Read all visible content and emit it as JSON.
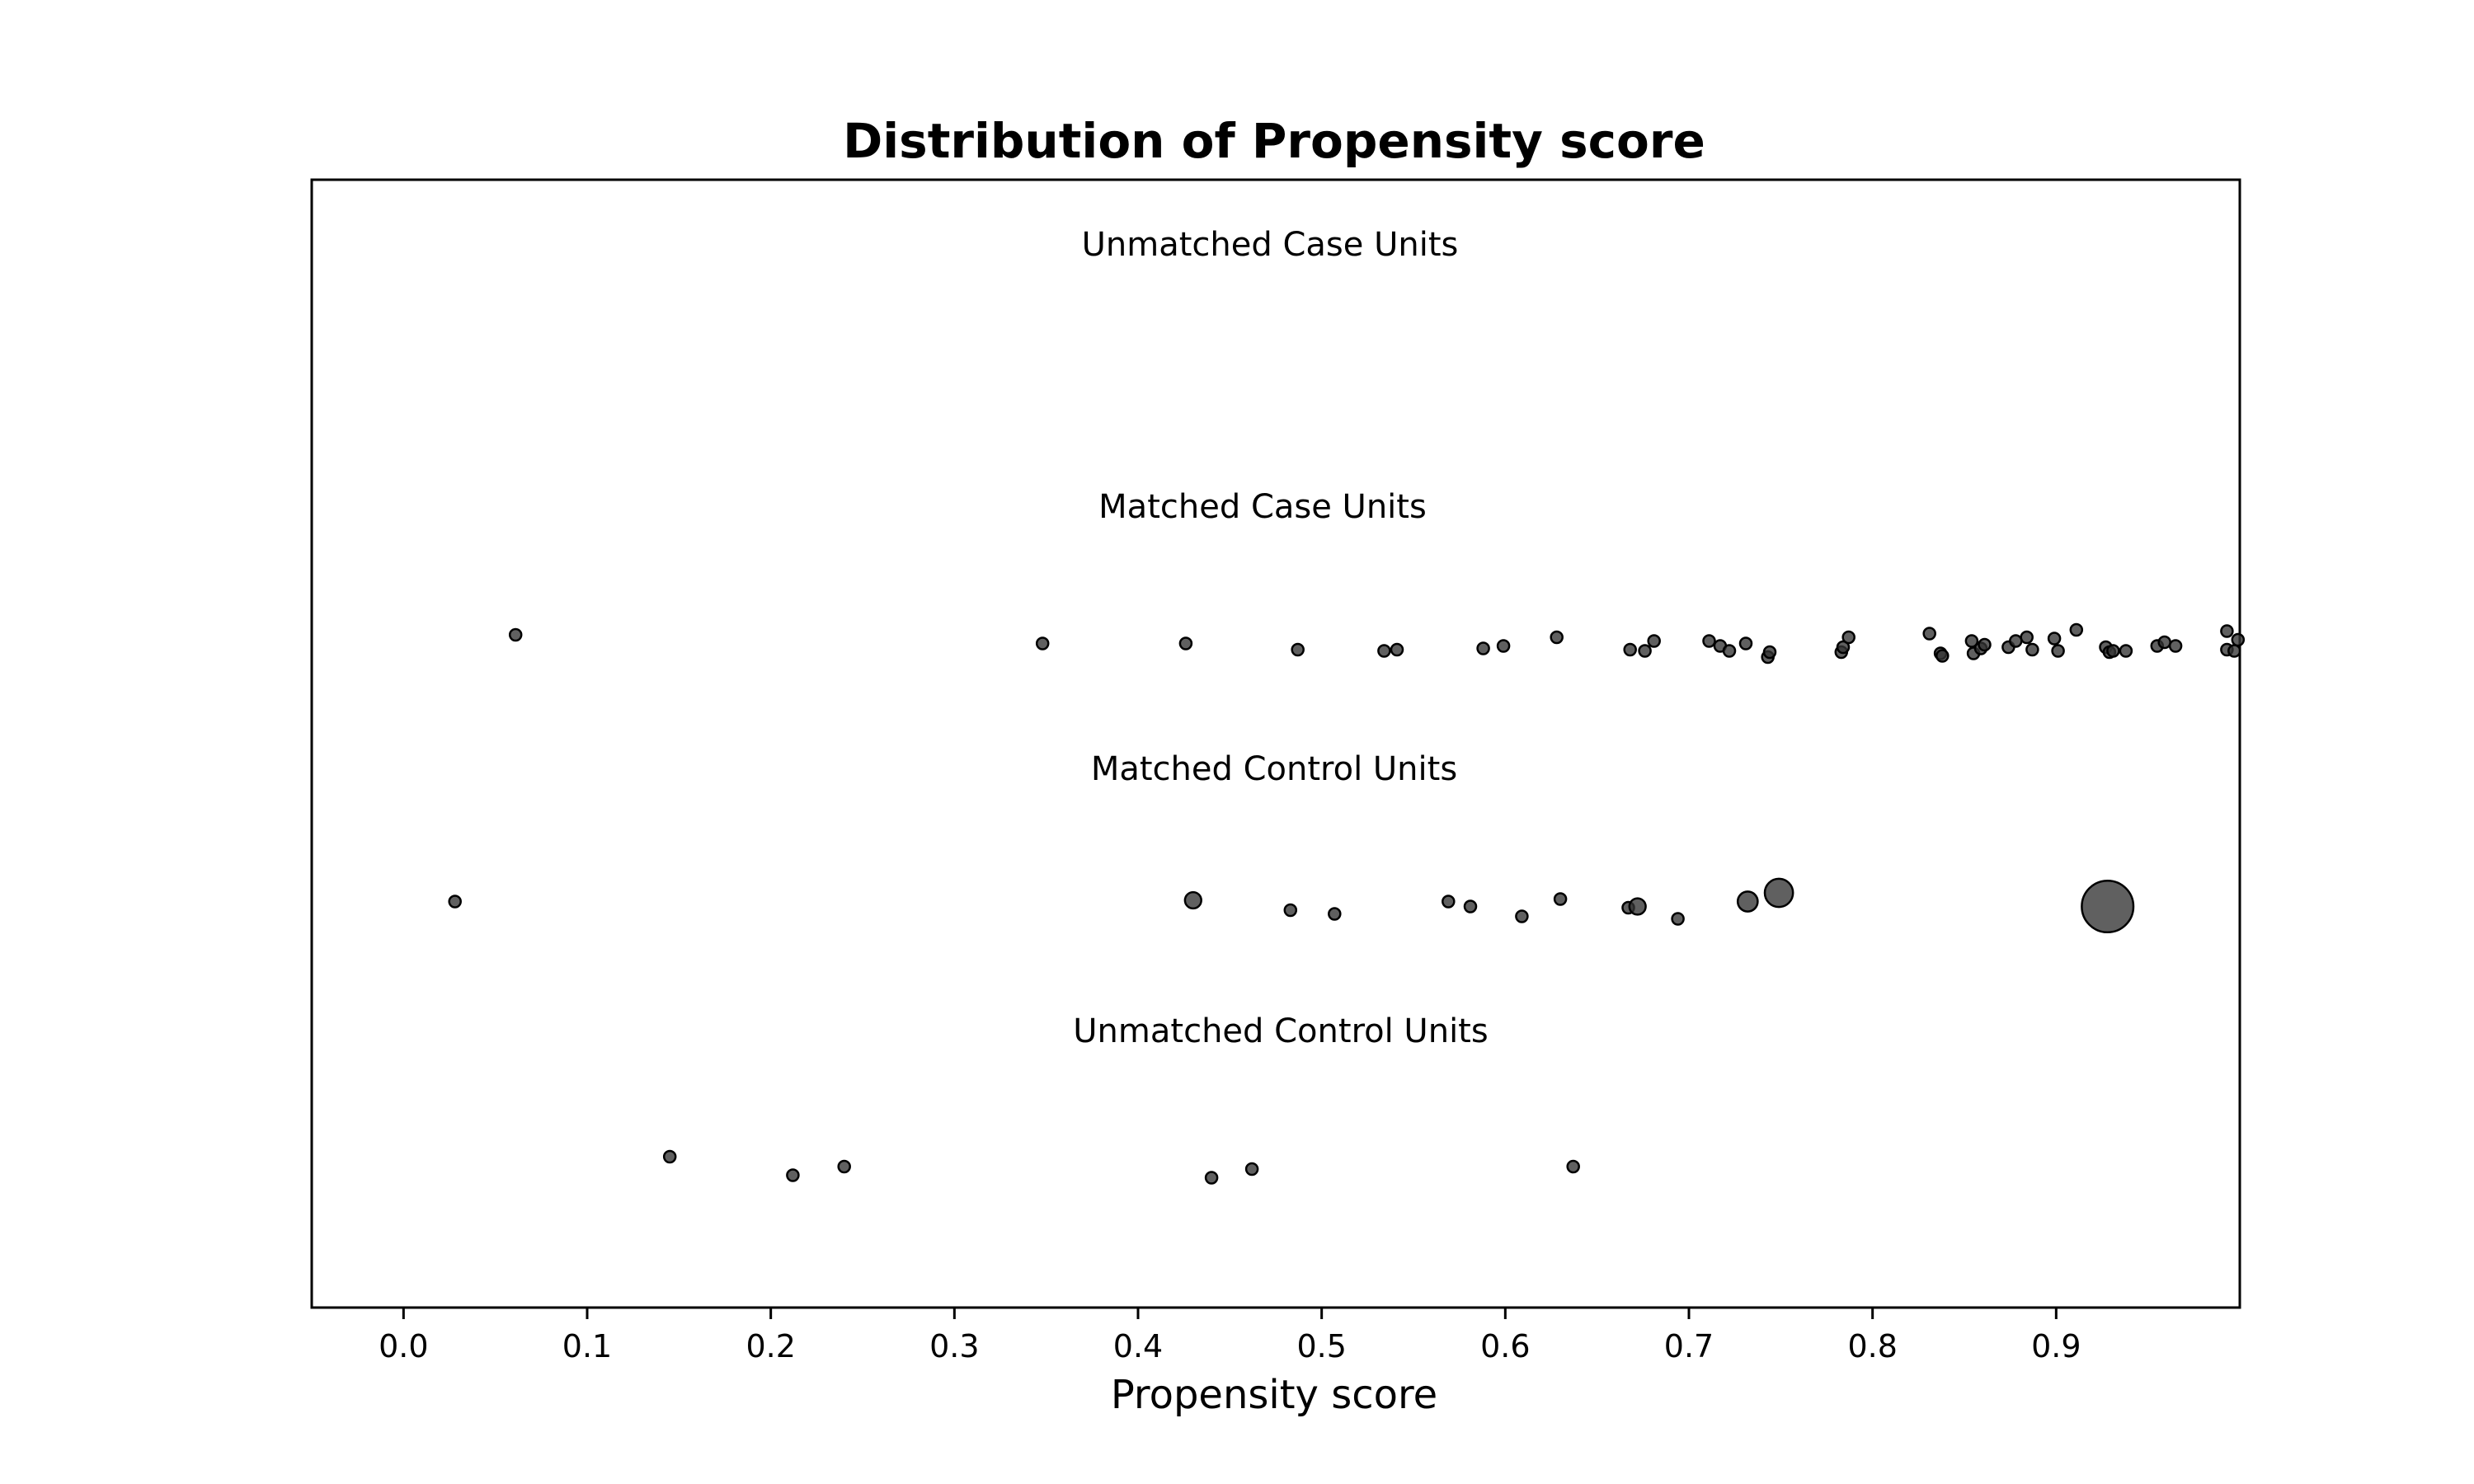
{
  "chart_data": {
    "type": "scatter",
    "title": "Distribution of Propensity score",
    "xlabel": "Propensity score",
    "ylabel": "",
    "xlim": [
      -0.05,
      1.0
    ],
    "xticks": [
      "0.0",
      "0.1",
      "0.2",
      "0.3",
      "0.4",
      "0.5",
      "0.6",
      "0.7",
      "0.8",
      "0.9"
    ],
    "grid": false,
    "legend": "none",
    "marker_color": "#333333",
    "groups": [
      {
        "label": "Unmatched Case Units",
        "points": []
      },
      {
        "label": "Matched Case Units",
        "points": [
          {
            "x": 0.061,
            "j": 0.2,
            "w": 1
          },
          {
            "x": 0.348,
            "j": 0.55,
            "w": 1
          },
          {
            "x": 0.426,
            "j": 0.55,
            "w": 1
          },
          {
            "x": 0.487,
            "j": 0.8,
            "w": 1
          },
          {
            "x": 0.534,
            "j": 0.85,
            "w": 1
          },
          {
            "x": 0.541,
            "j": 0.8,
            "w": 1
          },
          {
            "x": 0.588,
            "j": 0.75,
            "w": 1
          },
          {
            "x": 0.599,
            "j": 0.65,
            "w": 1
          },
          {
            "x": 0.628,
            "j": 0.3,
            "w": 1
          },
          {
            "x": 0.668,
            "j": 0.8,
            "w": 1
          },
          {
            "x": 0.676,
            "j": 0.85,
            "w": 1
          },
          {
            "x": 0.681,
            "j": 0.45,
            "w": 1
          },
          {
            "x": 0.711,
            "j": 0.45,
            "w": 1
          },
          {
            "x": 0.717,
            "j": 0.65,
            "w": 1
          },
          {
            "x": 0.722,
            "j": 0.85,
            "w": 1
          },
          {
            "x": 0.731,
            "j": 0.55,
            "w": 1
          },
          {
            "x": 0.743,
            "j": 1.1,
            "w": 1
          },
          {
            "x": 0.744,
            "j": 0.9,
            "w": 1
          },
          {
            "x": 0.783,
            "j": 0.9,
            "w": 1
          },
          {
            "x": 0.784,
            "j": 0.7,
            "w": 1
          },
          {
            "x": 0.787,
            "j": 0.3,
            "w": 1
          },
          {
            "x": 0.831,
            "j": 0.15,
            "w": 1
          },
          {
            "x": 0.837,
            "j": 0.95,
            "w": 1
          },
          {
            "x": 0.838,
            "j": 1.05,
            "w": 1
          },
          {
            "x": 0.854,
            "j": 0.45,
            "w": 1
          },
          {
            "x": 0.855,
            "j": 0.95,
            "w": 1
          },
          {
            "x": 0.859,
            "j": 0.75,
            "w": 1
          },
          {
            "x": 0.861,
            "j": 0.6,
            "w": 1
          },
          {
            "x": 0.874,
            "j": 0.7,
            "w": 1
          },
          {
            "x": 0.878,
            "j": 0.45,
            "w": 1
          },
          {
            "x": 0.884,
            "j": 0.3,
            "w": 1
          },
          {
            "x": 0.887,
            "j": 0.8,
            "w": 1
          },
          {
            "x": 0.899,
            "j": 0.35,
            "w": 1
          },
          {
            "x": 0.901,
            "j": 0.85,
            "w": 1
          },
          {
            "x": 0.911,
            "j": 0.0,
            "w": 1
          },
          {
            "x": 0.927,
            "j": 0.7,
            "w": 1
          },
          {
            "x": 0.929,
            "j": 0.9,
            "w": 1
          },
          {
            "x": 0.931,
            "j": 0.85,
            "w": 1
          },
          {
            "x": 0.938,
            "j": 0.85,
            "w": 1
          },
          {
            "x": 0.955,
            "j": 0.65,
            "w": 1
          },
          {
            "x": 0.959,
            "j": 0.5,
            "w": 1
          },
          {
            "x": 0.965,
            "j": 0.65,
            "w": 1
          },
          {
            "x": 0.993,
            "j": 0.05,
            "w": 1
          },
          {
            "x": 0.993,
            "j": 0.8,
            "w": 1
          },
          {
            "x": 0.997,
            "j": 0.85,
            "w": 1
          },
          {
            "x": 0.999,
            "j": 0.4,
            "w": 1
          }
        ]
      },
      {
        "label": "Matched Control Units",
        "points": [
          {
            "x": 0.028,
            "j": 0.35,
            "w": 1
          },
          {
            "x": 0.43,
            "j": 0.3,
            "w": 2
          },
          {
            "x": 0.483,
            "j": 0.7,
            "w": 1
          },
          {
            "x": 0.507,
            "j": 0.85,
            "w": 1
          },
          {
            "x": 0.569,
            "j": 0.35,
            "w": 1
          },
          {
            "x": 0.581,
            "j": 0.55,
            "w": 1
          },
          {
            "x": 0.609,
            "j": 0.95,
            "w": 1
          },
          {
            "x": 0.63,
            "j": 0.25,
            "w": 1
          },
          {
            "x": 0.667,
            "j": 0.6,
            "w": 1
          },
          {
            "x": 0.672,
            "j": 0.55,
            "w": 2
          },
          {
            "x": 0.694,
            "j": 1.05,
            "w": 1
          },
          {
            "x": 0.732,
            "j": 0.35,
            "w": 3
          },
          {
            "x": 0.749,
            "j": 0.0,
            "w": 6
          },
          {
            "x": 0.928,
            "j": 0.55,
            "w": 20
          }
        ]
      },
      {
        "label": "Unmatched Control Units",
        "points": [
          {
            "x": 0.145,
            "j": 0.1,
            "w": 1
          },
          {
            "x": 0.212,
            "j": 0.85,
            "w": 1
          },
          {
            "x": 0.24,
            "j": 0.5,
            "w": 1
          },
          {
            "x": 0.44,
            "j": 0.95,
            "w": 1
          },
          {
            "x": 0.462,
            "j": 0.6,
            "w": 1
          },
          {
            "x": 0.637,
            "j": 0.5,
            "w": 1
          }
        ]
      }
    ]
  }
}
